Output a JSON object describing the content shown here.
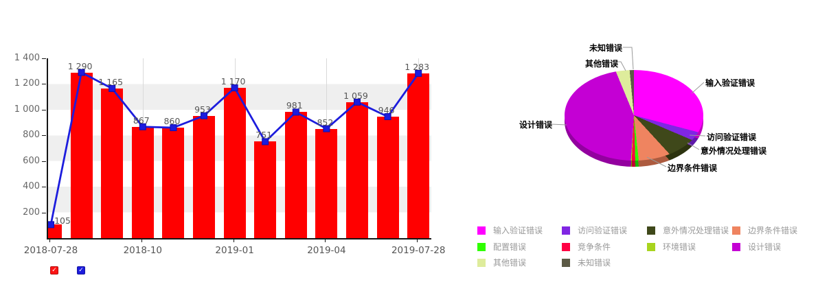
{
  "ui": {
    "checkmark_glyph": "✓",
    "series_toggles": [
      {
        "name": "bar-series-toggle",
        "color": "#fb1414",
        "checked": true
      },
      {
        "name": "line-series-toggle",
        "color": "#1c1cdd",
        "checked": true
      }
    ]
  },
  "chart_data": [
    {
      "type": "bar",
      "subtype": "bar-with-line-overlay",
      "title": "",
      "xlabel": "",
      "ylabel": "",
      "ylim": [
        0,
        1400
      ],
      "x_tick_labels": [
        "2018-07-28",
        "2018-10",
        "2019-01",
        "2019-04",
        "2019-07-28"
      ],
      "y_tick_labels": [
        "1 400",
        "1 200",
        "1 000",
        "800",
        "600",
        "400",
        "200"
      ],
      "grid": "horizontal-alternating-bands",
      "band_color": "#efefef",
      "series": [
        {
          "name": "bars",
          "type": "bar",
          "color": "#ff0000",
          "values": [
            105,
            1290,
            1165,
            867,
            860,
            953,
            1170,
            751,
            981,
            852,
            1059,
            946,
            1283
          ]
        },
        {
          "name": "line",
          "type": "line",
          "color": "#1c1cdd",
          "marker": "square",
          "values": [
            105,
            1290,
            1165,
            867,
            860,
            953,
            1170,
            751,
            981,
            852,
            1059,
            946,
            1283
          ]
        }
      ],
      "value_labels": [
        "105",
        "1 290",
        "1 165",
        "867",
        "860",
        "953",
        "1 170",
        "751",
        "981",
        "852",
        "1 059",
        "946",
        "1 283"
      ]
    },
    {
      "type": "pie",
      "style": "3d",
      "title": "",
      "legend_position": "bottom",
      "slices": [
        {
          "label": "输入验证错误",
          "pct": 31.1,
          "color": "#ff00ff"
        },
        {
          "label": "访问验证错误",
          "pct": 3.1,
          "color": "#8026e3"
        },
        {
          "label": "意外情况处理错误",
          "pct": 7.2,
          "color": "#3f481a"
        },
        {
          "label": "边界条件错误",
          "pct": 7.5,
          "color": "#ef8460"
        },
        {
          "label": "配置错误",
          "pct": 0.8,
          "color": "#2fff00"
        },
        {
          "label": "竞争条件",
          "pct": 0.8,
          "color": "#ff0043"
        },
        {
          "label": "环境错误",
          "pct": 0.2,
          "color": "#a8d41e"
        },
        {
          "label": "设计错误",
          "pct": 45.1,
          "color": "#c400d4"
        },
        {
          "label": "其他错误",
          "pct": 3.2,
          "color": "#deec9c"
        },
        {
          "label": "未知错误",
          "pct": 1.0,
          "color": "#5c5a46"
        }
      ],
      "callouts": [
        "未知错误",
        "其他错误",
        "输入验证错误",
        "访问验证错误",
        "意外情况处理错误",
        "边界条件错误",
        "设计错误"
      ]
    }
  ]
}
